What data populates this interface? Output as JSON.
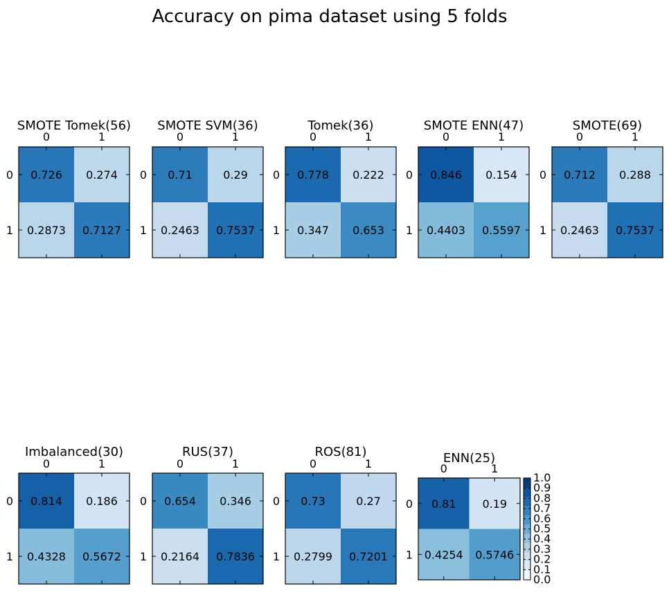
{
  "title": "Accuracy on pima dataset using 5 folds",
  "chart_data": {
    "type": "heatmap",
    "matrices": [
      {
        "title": "SMOTE Tomek(56)",
        "labels": [
          "0",
          "1"
        ],
        "values": [
          [
            0.726,
            0.274
          ],
          [
            0.2873,
            0.7127
          ]
        ]
      },
      {
        "title": "SMOTE SVM(36)",
        "labels": [
          "0",
          "1"
        ],
        "values": [
          [
            0.71,
            0.29
          ],
          [
            0.2463,
            0.7537
          ]
        ]
      },
      {
        "title": "Tomek(36)",
        "labels": [
          "0",
          "1"
        ],
        "values": [
          [
            0.778,
            0.222
          ],
          [
            0.347,
            0.653
          ]
        ]
      },
      {
        "title": "SMOTE ENN(47)",
        "labels": [
          "0",
          "1"
        ],
        "values": [
          [
            0.846,
            0.154
          ],
          [
            0.4403,
            0.5597
          ]
        ]
      },
      {
        "title": "SMOTE(69)",
        "labels": [
          "0",
          "1"
        ],
        "values": [
          [
            0.712,
            0.288
          ],
          [
            0.2463,
            0.7537
          ]
        ]
      },
      {
        "title": "Imbalanced(30)",
        "labels": [
          "0",
          "1"
        ],
        "values": [
          [
            0.814,
            0.186
          ],
          [
            0.4328,
            0.5672
          ]
        ]
      },
      {
        "title": "RUS(37)",
        "labels": [
          "0",
          "1"
        ],
        "values": [
          [
            0.654,
            0.346
          ],
          [
            0.2164,
            0.7836
          ]
        ]
      },
      {
        "title": "ROS(81)",
        "labels": [
          "0",
          "1"
        ],
        "values": [
          [
            0.73,
            0.27
          ],
          [
            0.2799,
            0.7201
          ]
        ]
      },
      {
        "title": "ENN(25)",
        "labels": [
          "0",
          "1"
        ],
        "values": [
          [
            0.81,
            0.19
          ],
          [
            0.4254,
            0.5746
          ]
        ]
      }
    ],
    "colorbar": {
      "range": [
        0.0,
        1.0
      ],
      "ticks": [
        "0.0",
        "0.1",
        "0.2",
        "0.3",
        "0.4",
        "0.5",
        "0.6",
        "0.7",
        "0.8",
        "0.9",
        "1.0"
      ],
      "colormap": "Blues"
    }
  }
}
